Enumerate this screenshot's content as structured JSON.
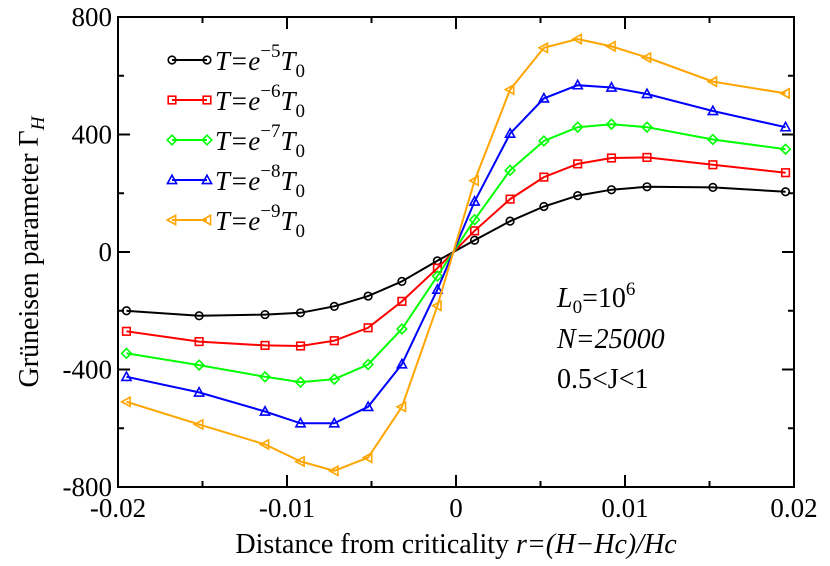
{
  "chart_data": {
    "type": "line",
    "xlabel_prefix": "Distance from criticality ",
    "xlabel_formula": "r=(H−Hc)/Hc",
    "ylabel_prefix": "Grüneisen parameter ",
    "ylabel_symbol": "Γ",
    "ylabel_subscript": "H",
    "xlim": [
      -0.02,
      0.02
    ],
    "ylim": [
      -800,
      800
    ],
    "xticks": [
      -0.02,
      -0.01,
      0,
      0.01,
      0.02
    ],
    "xtick_labels": [
      "-0.02",
      "-0.01",
      "0",
      "0.01",
      "0.02"
    ],
    "yticks": [
      -800,
      -400,
      0,
      400,
      800
    ],
    "ytick_labels": [
      "-800",
      "-400",
      "0",
      "400",
      "800"
    ],
    "x": [
      -0.0195,
      -0.0152,
      -0.0113,
      -0.0092,
      -0.0072,
      -0.0052,
      -0.0032,
      -0.0011,
      0.0011,
      0.0032,
      0.0052,
      0.0072,
      0.0092,
      0.0113,
      0.0152,
      0.0195
    ],
    "series": [
      {
        "name": "T=e^-5 T0",
        "exponent": "−5",
        "marker": "circle",
        "color": "#000000",
        "values": [
          -200,
          -217,
          -213,
          -207,
          -185,
          -150,
          -100,
          -30,
          40,
          105,
          155,
          192,
          212,
          222,
          220,
          205
        ]
      },
      {
        "name": "T=e^-6 T0",
        "exponent": "−6",
        "marker": "square",
        "color": "#ff0000",
        "values": [
          -270,
          -305,
          -318,
          -320,
          -302,
          -258,
          -168,
          -55,
          72,
          180,
          255,
          300,
          320,
          322,
          297,
          270
        ]
      },
      {
        "name": "T=e^-7 T0",
        "exponent": "−7",
        "marker": "diamond",
        "color": "#00ff00",
        "values": [
          -345,
          -385,
          -425,
          -443,
          -433,
          -383,
          -262,
          -82,
          110,
          278,
          378,
          425,
          435,
          425,
          383,
          350
        ]
      },
      {
        "name": "T=e^-8 T0",
        "exponent": "−8",
        "marker": "triangle-up",
        "color": "#0000ff",
        "values": [
          -425,
          -478,
          -543,
          -583,
          -583,
          -527,
          -382,
          -128,
          172,
          403,
          523,
          568,
          560,
          538,
          480,
          425
        ]
      },
      {
        "name": "T=e^-9 T0",
        "exponent": "−9",
        "marker": "triangle-left",
        "color": "#ffa500",
        "values": [
          -510,
          -587,
          -655,
          -713,
          -745,
          -700,
          -527,
          -183,
          243,
          553,
          695,
          725,
          700,
          662,
          580,
          540
        ]
      }
    ],
    "legend_base": "T=e",
    "legend_T0": "T",
    "legend_T0_sub": "0",
    "legend_placement": "top-left",
    "annotations": {
      "L0_base": "L",
      "L0_sub": "0",
      "L0_value": "=10",
      "L0_exp": "6",
      "N_line": "N=25000",
      "J_line": "0.5<J<1"
    }
  }
}
